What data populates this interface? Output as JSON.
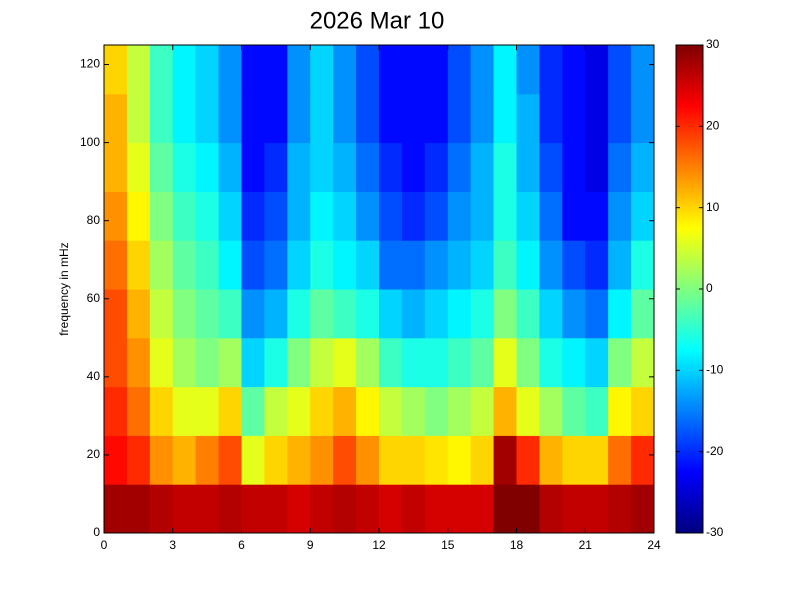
{
  "chart_data": {
    "type": "heatmap",
    "title": "2026 Mar 10",
    "ylabel": "frequency in mHz",
    "xbins": [
      0,
      1,
      2,
      3,
      4,
      5,
      6,
      7,
      8,
      9,
      10,
      11,
      12,
      13,
      14,
      15,
      16,
      17,
      18,
      19,
      20,
      21,
      22,
      23,
      24
    ],
    "ybins": [
      0,
      12.5,
      25,
      37.5,
      50,
      62.5,
      75,
      87.5,
      100,
      112.5,
      125
    ],
    "values": [
      [
        28,
        28,
        27,
        26,
        26,
        27,
        26,
        26,
        25,
        26,
        27,
        26,
        25,
        26,
        25,
        25,
        25,
        30,
        30,
        27,
        26,
        26,
        27,
        28
      ],
      [
        22,
        20,
        14,
        12,
        15,
        18,
        6,
        10,
        12,
        14,
        18,
        14,
        10,
        10,
        9,
        8,
        10,
        28,
        20,
        12,
        10,
        10,
        16,
        20
      ],
      [
        20,
        16,
        10,
        6,
        6,
        10,
        -2,
        4,
        6,
        10,
        12,
        8,
        4,
        2,
        0,
        2,
        4,
        12,
        6,
        2,
        -2,
        -4,
        8,
        10
      ],
      [
        18,
        14,
        6,
        2,
        0,
        2,
        -10,
        -6,
        0,
        4,
        6,
        2,
        -4,
        -6,
        -6,
        -4,
        -2,
        6,
        0,
        -6,
        -8,
        -10,
        0,
        4
      ],
      [
        18,
        12,
        4,
        0,
        -2,
        -4,
        -14,
        -12,
        -6,
        -2,
        -4,
        -6,
        -10,
        -12,
        -10,
        -8,
        -6,
        0,
        -4,
        -10,
        -14,
        -16,
        -8,
        -2
      ],
      [
        16,
        10,
        2,
        -2,
        -4,
        -8,
        -18,
        -16,
        -10,
        -6,
        -8,
        -10,
        -16,
        -16,
        -14,
        -12,
        -10,
        -4,
        -8,
        -14,
        -18,
        -20,
        -12,
        -6
      ],
      [
        14,
        8,
        0,
        -4,
        -6,
        -10,
        -20,
        -18,
        -12,
        -8,
        -10,
        -14,
        -18,
        -20,
        -18,
        -14,
        -12,
        -6,
        -10,
        -16,
        -22,
        -22,
        -14,
        -10
      ],
      [
        12,
        6,
        -2,
        -6,
        -8,
        -12,
        -22,
        -20,
        -12,
        -10,
        -12,
        -16,
        -20,
        -22,
        -20,
        -16,
        -12,
        -6,
        -12,
        -18,
        -22,
        -24,
        -16,
        -12
      ],
      [
        12,
        4,
        -4,
        -8,
        -10,
        -14,
        -22,
        -22,
        -14,
        -10,
        -14,
        -18,
        -22,
        -22,
        -22,
        -18,
        -14,
        -8,
        -12,
        -20,
        -22,
        -24,
        -18,
        -14
      ],
      [
        10,
        4,
        -4,
        -8,
        -10,
        -14,
        -22,
        -22,
        -14,
        -10,
        -14,
        -18,
        -22,
        -22,
        -22,
        -18,
        -14,
        -8,
        -14,
        -20,
        -22,
        -24,
        -18,
        -14
      ]
    ],
    "colormap": "jet",
    "xlim": [
      0,
      24
    ],
    "xticks": [
      0,
      3,
      6,
      9,
      12,
      15,
      18,
      21,
      24
    ],
    "ylim": [
      0,
      125
    ],
    "yticks": [
      0,
      20,
      40,
      60,
      80,
      100,
      120
    ],
    "clim": [
      -30,
      30
    ],
    "cticks": [
      -30,
      -20,
      -10,
      0,
      10,
      20,
      30
    ]
  }
}
